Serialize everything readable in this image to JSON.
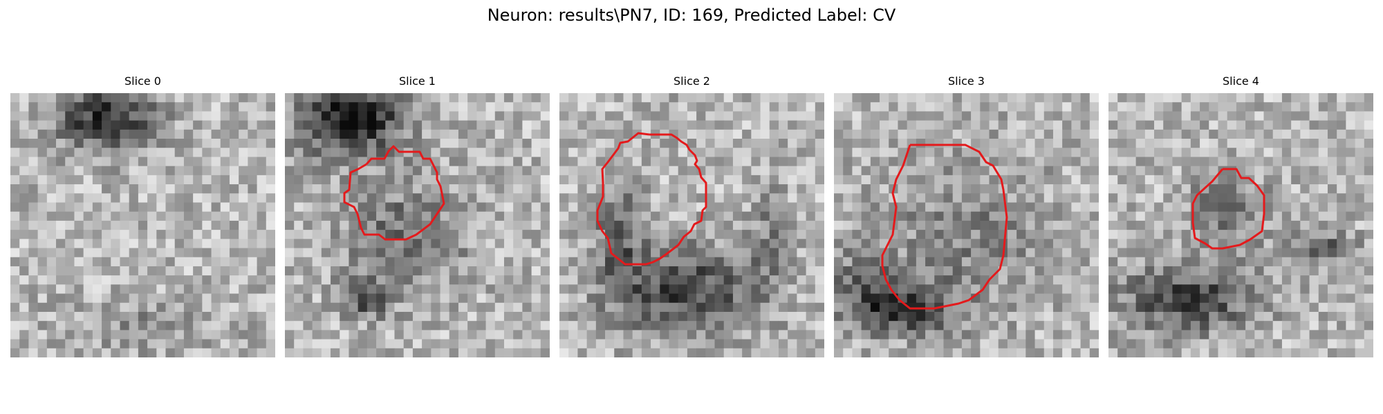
{
  "figure": {
    "title": "Neuron: results\\PN7, ID: 169, Predicted Label: CV"
  },
  "slices": [
    {
      "title": "Slice 0",
      "has_contour": false
    },
    {
      "title": "Slice 1",
      "has_contour": true
    },
    {
      "title": "Slice 2",
      "has_contour": true
    },
    {
      "title": "Slice 3",
      "has_contour": true
    },
    {
      "title": "Slice 4",
      "has_contour": true
    }
  ],
  "colors": {
    "contour": "#e41a1c",
    "background": "#ffffff"
  }
}
